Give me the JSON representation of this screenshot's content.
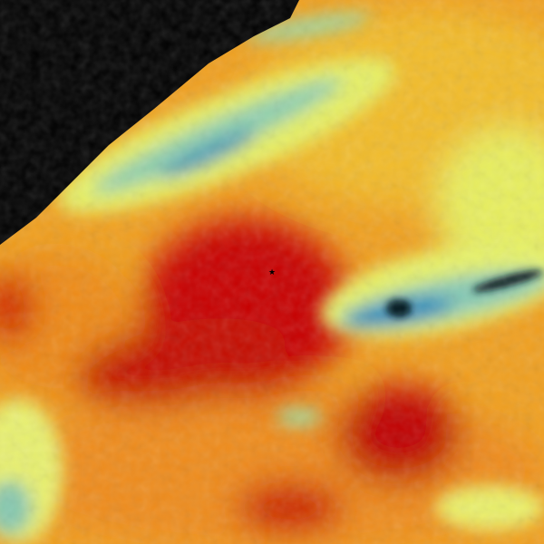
{
  "image": {
    "kind": "weather-radar-reflectivity",
    "colors": {
      "no_data": "#000000",
      "low": "#2f8fb8",
      "low_mid": "#8fd0b0",
      "mid": "#e8f46a",
      "mid_high": "#f2b624",
      "high": "#ee7a10",
      "very_high": "#c40000",
      "extreme": "#b00000"
    },
    "icons": [
      "radar-site-marker"
    ]
  }
}
